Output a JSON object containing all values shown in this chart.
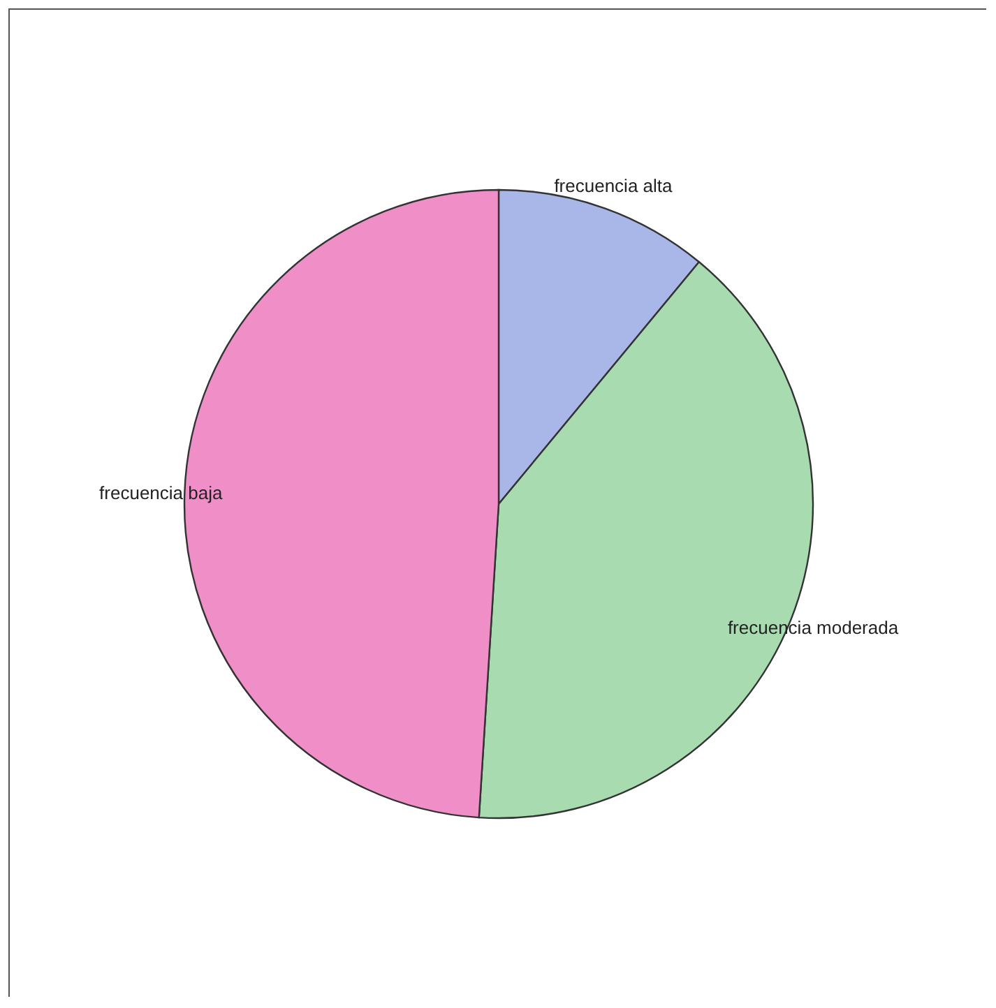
{
  "chart_data": {
    "type": "pie",
    "categories": [
      "frecuencia alta",
      "frecuencia moderada",
      "frecuencia baja"
    ],
    "values": [
      11,
      40,
      49
    ],
    "colors": [
      "#a9b6e8",
      "#a8dcb0",
      "#f08ec8"
    ]
  }
}
